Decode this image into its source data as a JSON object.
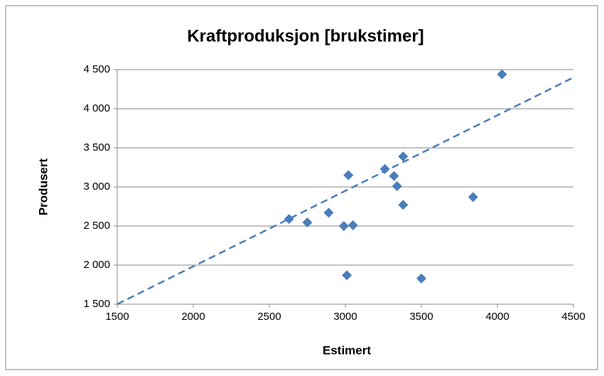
{
  "chart_data": {
    "type": "scatter",
    "title": "Kraftproduksjon [brukstimer]",
    "x_label": "Estimert",
    "y_label": "Produsert",
    "series": [
      {
        "color": "#4a7ebb",
        "x": [
          4030,
          3380,
          3260,
          3020,
          3320,
          3340,
          3840,
          3380,
          2890,
          2630,
          2750,
          2990,
          3050,
          3010,
          3500
        ],
        "values": [
          4440,
          3390,
          3230,
          3150,
          3140,
          3010,
          2870,
          2770,
          2670,
          2590,
          2545,
          2500,
          2510,
          1870,
          1830
        ]
      }
    ],
    "trendline": {
      "color": "#4a7ebb",
      "x": [
        1500,
        4500
      ],
      "values": [
        1500,
        4400
      ]
    },
    "xlim": [
      1500,
      4500
    ],
    "ylim": [
      1500,
      4500
    ],
    "xticks": [
      1500,
      2000,
      2500,
      3000,
      3500,
      4000,
      4500
    ],
    "yticks": [
      {
        "value": 1500,
        "label": "1 500"
      },
      {
        "value": 2000,
        "label": "2 000"
      },
      {
        "value": 2500,
        "label": "2 500"
      },
      {
        "value": 3000,
        "label": "3 000"
      },
      {
        "value": 3500,
        "label": "3 500"
      },
      {
        "value": 4000,
        "label": "4 000"
      },
      {
        "value": 4500,
        "label": "4 500"
      }
    ],
    "grid": true
  }
}
